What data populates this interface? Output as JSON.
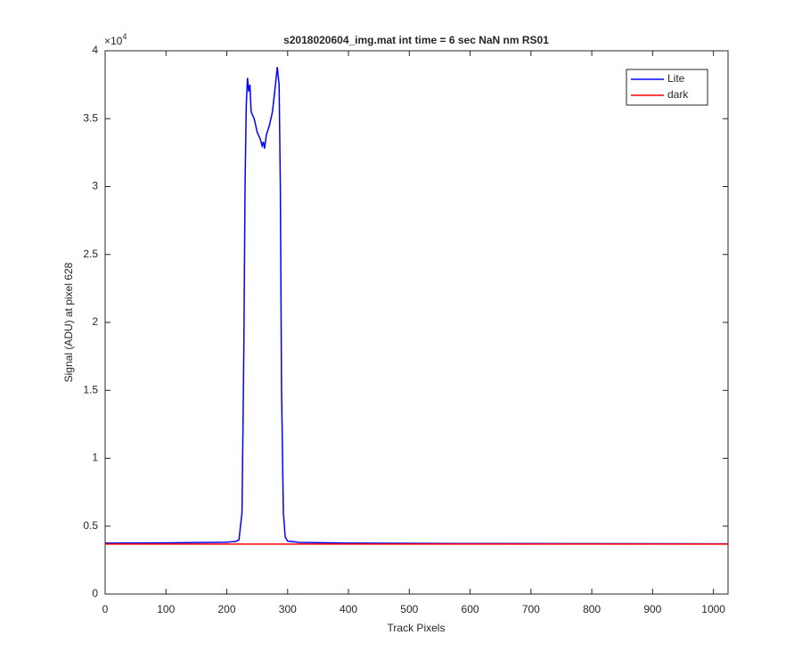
{
  "chart_data": {
    "type": "line",
    "title": "s2018020604_img.mat int time = 6 sec  NaN nm RS01",
    "x_label": "Track Pixels",
    "y_label": "Signal (ADU) at pixel 628",
    "y_multiplier": {
      "base": "×10",
      "exponent": "4"
    },
    "xlim": [
      0,
      1024
    ],
    "xticks": [
      0,
      100,
      200,
      300,
      400,
      500,
      600,
      700,
      800,
      900,
      1000
    ],
    "ylim": [
      0,
      40000
    ],
    "yticks": [
      0,
      {
        "value": 5000,
        "label": "0.5"
      },
      {
        "value": 10000,
        "label": "1"
      },
      {
        "value": 15000,
        "label": "1.5"
      },
      {
        "value": 20000,
        "label": "2"
      },
      {
        "value": 25000,
        "label": "2.5"
      },
      {
        "value": 30000,
        "label": "3"
      },
      {
        "value": 35000,
        "label": "3.5"
      },
      {
        "value": 40000,
        "label": "4"
      }
    ],
    "grid": false,
    "legend_position": "northeast",
    "series": [
      {
        "name": "Lite",
        "color": "#0000ff",
        "x": [
          0,
          100,
          200,
          215,
          220,
          225,
          228,
          230,
          232,
          234,
          236,
          238,
          240,
          245,
          250,
          255,
          258,
          260,
          262,
          265,
          270,
          275,
          280,
          283,
          286,
          288,
          290,
          293,
          296,
          300,
          320,
          400,
          600,
          800,
          1024
        ],
        "values": [
          3750,
          3770,
          3820,
          3880,
          4000,
          6000,
          18000,
          30000,
          36000,
          38000,
          37000,
          37500,
          35500,
          35000,
          34000,
          33500,
          33000,
          33300,
          32800,
          33800,
          34500,
          35500,
          37500,
          38800,
          37500,
          30000,
          15000,
          6000,
          4200,
          3900,
          3800,
          3750,
          3720,
          3710,
          3700
        ]
      },
      {
        "name": "dark",
        "color": "#ff0000",
        "x": [
          0,
          200,
          400,
          600,
          800,
          1024
        ],
        "values": [
          3680,
          3680,
          3680,
          3680,
          3680,
          3680
        ]
      }
    ]
  }
}
